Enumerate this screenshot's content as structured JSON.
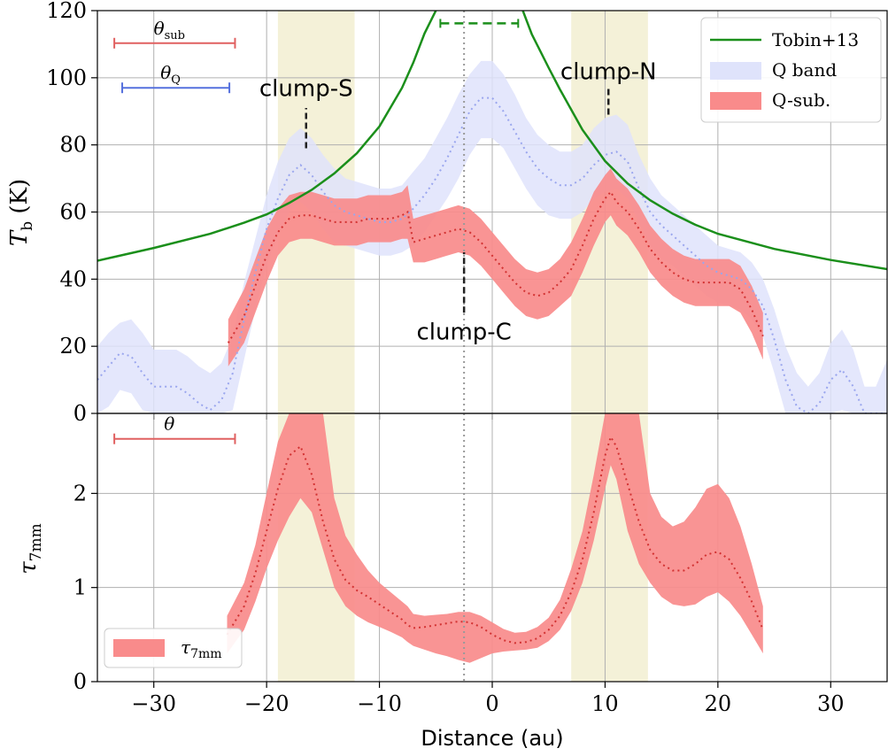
{
  "chart_data": [
    {
      "panel": "top",
      "type": "line",
      "ylabel": {
        "main": "T",
        "sub": "b",
        "unit": " (K)"
      },
      "ylim": [
        0,
        120
      ],
      "xlim": [
        -35,
        35
      ],
      "xticks": [
        -30,
        -20,
        -10,
        0,
        10,
        20,
        30
      ],
      "yticks": [
        0,
        20,
        40,
        60,
        80,
        100,
        120
      ],
      "grid": true,
      "legend_position": "top-right",
      "legend": [
        "Tobin+13",
        "Q band",
        "Q-sub."
      ],
      "colors": {
        "tobin": "#1b8f1b",
        "qband_fill": "#dfe3fb",
        "qband_line": "#9aa6ee",
        "qsub_fill": "#f98b8b",
        "qsub_line": "#d23232",
        "shade": "#f4f1d8",
        "overlap": "#e9c3a8"
      },
      "shaded_regions": [
        [
          -19,
          -12.2
        ],
        [
          7,
          13.8
        ]
      ],
      "center_line_x": -2.5,
      "beam_labels": [
        {
          "main": "θ",
          "sub": "sub",
          "x0": -33.5,
          "x1": -22.8,
          "y": 110.3,
          "color": "#e06060"
        },
        {
          "main": "θ",
          "sub": "Q",
          "x0": -32.8,
          "x1": -23.3,
          "y": 97,
          "color": "#5570dd"
        }
      ],
      "annotations": [
        {
          "text": "clump-S",
          "x": -16.5,
          "y_text": 94.5,
          "line_y": [
            79,
            91
          ]
        },
        {
          "text": "clump-N",
          "x": 10.3,
          "y_text": 99.5,
          "line_y": [
            89,
            97
          ]
        },
        {
          "text": "clump-C",
          "x": -2.5,
          "y_text": 22,
          "line_y": [
            30,
            48
          ]
        }
      ],
      "series": [
        {
          "name": "Tobin+13",
          "x": [
            -35,
            -30,
            -25,
            -22,
            -20,
            -18,
            -16,
            -14,
            -12,
            -10,
            -8,
            -7,
            -6,
            -5,
            -4.5,
            -4.2,
            2.2,
            2.6,
            3.5,
            5,
            6,
            8,
            10,
            12,
            14,
            16,
            18,
            20,
            25,
            30,
            35
          ],
          "y": [
            45.5,
            49.3,
            53.5,
            56.8,
            59.3,
            62.7,
            66.6,
            71.5,
            77.5,
            85.5,
            97,
            104.5,
            113.2,
            120,
            122,
            125,
            125,
            121,
            113,
            103,
            96.5,
            84.5,
            75.2,
            68.5,
            63.5,
            59.5,
            56.2,
            53.5,
            49,
            45.7,
            43
          ],
          "plateau": {
            "x": [
              -4.6,
              2.3
            ],
            "y": 116.2
          }
        },
        {
          "name": "Q band",
          "x": [
            -35,
            -34,
            -33,
            -32,
            -31,
            -30,
            -29,
            -28,
            -27,
            -26,
            -25,
            -24,
            -23,
            -22,
            -21,
            -20,
            -19,
            -18,
            -17,
            -16,
            -15,
            -14,
            -13,
            -12,
            -11,
            -10,
            -9,
            -8,
            -7,
            -6,
            -5,
            -4,
            -3,
            -2,
            -1,
            0,
            1,
            2,
            3,
            4,
            5,
            6,
            7,
            8,
            9,
            10,
            11,
            12,
            13,
            14,
            15,
            16,
            17,
            18,
            19,
            20,
            21,
            22,
            23,
            24,
            25,
            26,
            27,
            28,
            29,
            30,
            31,
            32,
            33,
            34,
            35
          ],
          "y": [
            10,
            14,
            18,
            17,
            12,
            8,
            8,
            8,
            6,
            3,
            1,
            4,
            12,
            28,
            42,
            55,
            64,
            71,
            74,
            71,
            66,
            62,
            60,
            59,
            58,
            57,
            57,
            58,
            61,
            65,
            70,
            76,
            83,
            90,
            94,
            94,
            90,
            84,
            78,
            73,
            70,
            68,
            68,
            70,
            74,
            77,
            78,
            75,
            67,
            60,
            56,
            53,
            50,
            47,
            44,
            42,
            41,
            40,
            37,
            32,
            22,
            10,
            2,
            0,
            3,
            10,
            13,
            8,
            0,
            0,
            0
          ],
          "y_upper": [
            20,
            24,
            27,
            28,
            24,
            19,
            19,
            19,
            17,
            14,
            12,
            15,
            23,
            39,
            52,
            65,
            75,
            82,
            85,
            82,
            77,
            73,
            70,
            69,
            68,
            67,
            67,
            68,
            72,
            76,
            82,
            88,
            95,
            101,
            105,
            105,
            101,
            95,
            88,
            83,
            80,
            78,
            78,
            80,
            85,
            88,
            89,
            86,
            77,
            70,
            65,
            62,
            59,
            56,
            53,
            50,
            49,
            48,
            45,
            40,
            31,
            20,
            12,
            8,
            12,
            21,
            25,
            19,
            8,
            8,
            16
          ],
          "y_lower": [
            0,
            2,
            7,
            6,
            1,
            0,
            0,
            0,
            0,
            0,
            0,
            0,
            1,
            16,
            31,
            44,
            53,
            60,
            63,
            60,
            55,
            51,
            50,
            49,
            48,
            47,
            47,
            48,
            50,
            54,
            59,
            64,
            70,
            77,
            82,
            82,
            79,
            73,
            67,
            62,
            59,
            58,
            58,
            60,
            64,
            66,
            67,
            64,
            57,
            50,
            46,
            44,
            41,
            38,
            35,
            33,
            32,
            31,
            28,
            23,
            12,
            0,
            0,
            0,
            0,
            0,
            1,
            0,
            0,
            0,
            0
          ]
        },
        {
          "name": "Q-sub.",
          "x": [
            -23.4,
            -22,
            -21,
            -20,
            -19,
            -18,
            -17,
            -16,
            -15,
            -14,
            -13,
            -12,
            -11,
            -10,
            -9,
            -8,
            -7.5,
            -7,
            -6,
            -5,
            -4,
            -3,
            -2,
            -1,
            0,
            1,
            2,
            3,
            4,
            5,
            6,
            7,
            8,
            9,
            10,
            10.5,
            11,
            12,
            13,
            14,
            15,
            16,
            17,
            18,
            19,
            20,
            21,
            22,
            23,
            24
          ],
          "y": [
            21,
            29,
            38,
            47,
            54,
            58,
            59,
            59,
            58,
            57,
            57,
            57,
            58,
            58,
            58,
            59,
            60,
            51,
            52,
            53,
            54,
            55,
            54,
            51,
            47,
            43,
            39,
            36,
            35,
            36,
            39,
            43,
            50,
            58,
            64,
            66,
            63,
            60,
            55,
            49,
            45,
            42,
            40,
            39,
            39,
            39,
            39,
            37,
            31,
            23
          ],
          "y_upper": [
            28,
            37,
            46,
            55,
            61,
            65,
            66,
            66,
            65,
            64,
            64,
            64,
            65,
            65,
            65,
            66,
            68,
            58,
            59,
            60,
            61,
            62,
            61,
            58,
            54,
            50,
            46,
            43,
            42,
            43,
            46,
            51,
            58,
            66,
            71,
            73,
            70,
            67,
            62,
            56,
            52,
            49,
            47,
            46,
            46,
            46,
            46,
            44,
            38,
            30
          ],
          "y_lower": [
            14,
            21,
            30,
            39,
            47,
            51,
            52,
            52,
            51,
            50,
            50,
            50,
            51,
            51,
            51,
            52,
            52,
            45,
            45,
            46,
            47,
            48,
            47,
            44,
            40,
            36,
            32,
            29,
            28,
            29,
            32,
            35,
            42,
            50,
            57,
            59,
            56,
            53,
            48,
            42,
            38,
            35,
            33,
            32,
            32,
            32,
            32,
            30,
            24,
            16
          ]
        }
      ]
    },
    {
      "panel": "bottom",
      "type": "line",
      "xlabel": "Distance (au)",
      "ylabel": {
        "main": "τ",
        "sub": "7mm"
      },
      "ylim": [
        0,
        2.85
      ],
      "xlim": [
        -35,
        35
      ],
      "xticks": [
        -30,
        -20,
        -10,
        0,
        10,
        20,
        30
      ],
      "yticks": [
        0,
        1,
        2
      ],
      "grid": true,
      "legend_position": "lower-left",
      "legend": [
        {
          "main": "τ",
          "sub": "7mm"
        }
      ],
      "shaded_regions": [
        [
          -19,
          -12.2
        ],
        [
          7,
          13.8
        ]
      ],
      "center_line_x": -2.5,
      "beam_labels": [
        {
          "main": "θ",
          "sub": "",
          "x0": -33.5,
          "x1": -22.8,
          "y": 2.58,
          "color": "#e06060"
        }
      ],
      "series": [
        {
          "name": "τ7mm",
          "x": [
            -23.5,
            -22,
            -21,
            -20,
            -19,
            -18,
            -17,
            -16,
            -15,
            -14,
            -13,
            -12,
            -11,
            -10,
            -9,
            -8,
            -7.5,
            -7,
            -6,
            -5,
            -4,
            -3,
            -2,
            -1,
            0,
            1,
            2,
            3,
            4,
            5,
            6,
            7,
            8,
            9,
            10,
            10.5,
            11,
            12,
            13,
            14,
            15,
            16,
            17,
            18,
            19,
            20,
            21,
            22,
            23,
            24
          ],
          "y": [
            0.5,
            0.8,
            1.15,
            1.6,
            2.05,
            2.4,
            2.5,
            2.2,
            1.7,
            1.3,
            1.08,
            0.97,
            0.9,
            0.82,
            0.74,
            0.66,
            0.6,
            0.57,
            0.58,
            0.6,
            0.62,
            0.64,
            0.63,
            0.58,
            0.5,
            0.44,
            0.41,
            0.42,
            0.46,
            0.55,
            0.7,
            0.95,
            1.3,
            1.8,
            2.4,
            2.6,
            2.5,
            2.1,
            1.7,
            1.4,
            1.25,
            1.18,
            1.18,
            1.25,
            1.35,
            1.38,
            1.3,
            1.1,
            0.85,
            0.55
          ],
          "y_upper": [
            0.7,
            1.05,
            1.45,
            2.0,
            2.55,
            2.85,
            2.85,
            2.85,
            2.85,
            1.95,
            1.55,
            1.35,
            1.18,
            1.05,
            0.95,
            0.85,
            0.8,
            0.72,
            0.7,
            0.71,
            0.72,
            0.74,
            0.74,
            0.7,
            0.63,
            0.56,
            0.52,
            0.53,
            0.58,
            0.68,
            0.87,
            1.2,
            1.6,
            2.2,
            2.85,
            2.85,
            2.85,
            2.85,
            2.85,
            2.0,
            1.75,
            1.65,
            1.7,
            1.85,
            2.05,
            2.1,
            1.95,
            1.65,
            1.25,
            0.8
          ],
          "y_lower": [
            0.3,
            0.55,
            0.85,
            1.2,
            1.5,
            1.75,
            1.95,
            1.8,
            1.4,
            1.0,
            0.8,
            0.7,
            0.63,
            0.58,
            0.53,
            0.47,
            0.42,
            0.38,
            0.34,
            0.3,
            0.27,
            0.23,
            0.2,
            0.25,
            0.3,
            0.32,
            0.33,
            0.34,
            0.36,
            0.43,
            0.55,
            0.75,
            1.05,
            1.5,
            2.05,
            2.3,
            2.15,
            1.6,
            1.25,
            1.05,
            0.9,
            0.82,
            0.8,
            0.82,
            0.9,
            0.95,
            0.85,
            0.7,
            0.5,
            0.3
          ]
        }
      ]
    }
  ]
}
